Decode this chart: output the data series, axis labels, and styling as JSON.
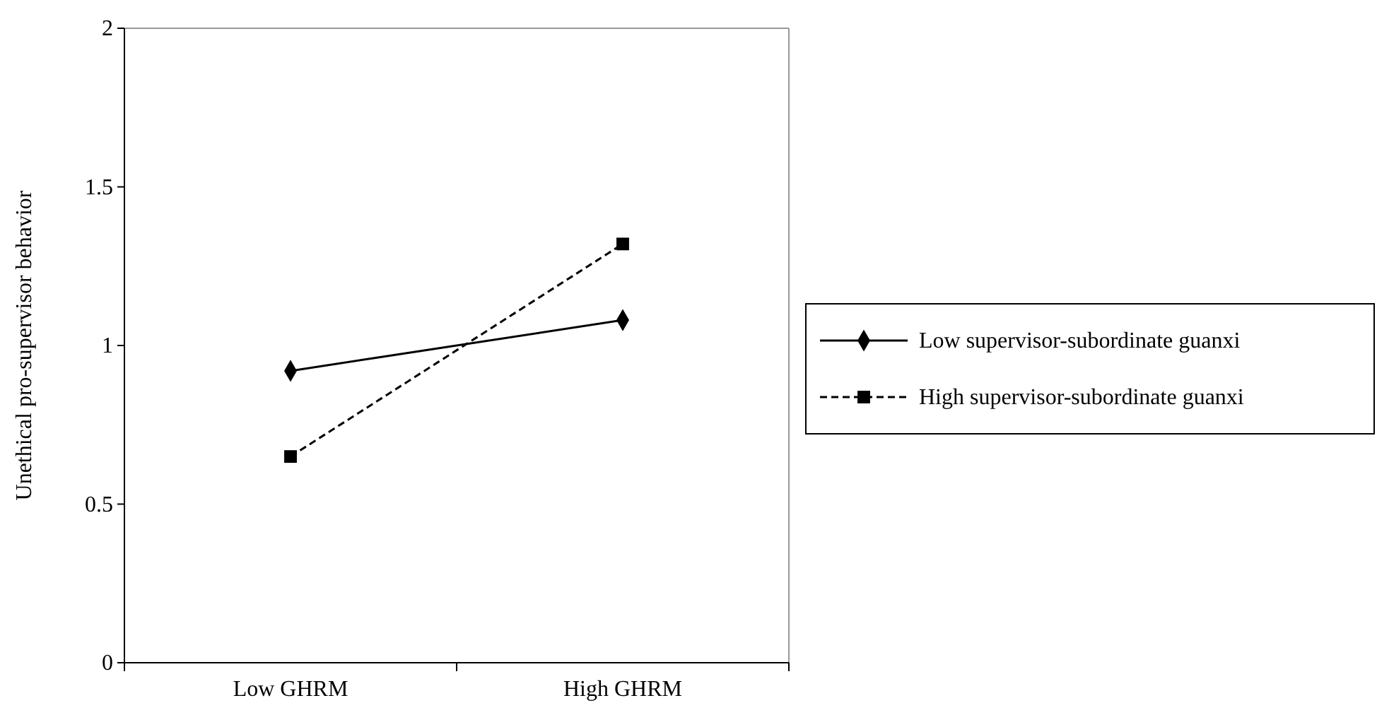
{
  "chart_data": {
    "type": "line",
    "ylabel": "Unethical pro-supervisor behavior",
    "categories": [
      "Low GHRM",
      "High GHRM"
    ],
    "ylim": [
      0,
      2
    ],
    "yticks": [
      0,
      0.5,
      1,
      1.5,
      2
    ],
    "legend": "right",
    "grid": false,
    "series": [
      {
        "name": "Low supervisor-subordinate guanxi",
        "color": "#000000",
        "values": [
          0.92,
          1.08
        ],
        "marker": "diamond",
        "line_style": "solid"
      },
      {
        "name": "High supervisor-subordinate guanxi",
        "color": "#000000",
        "values": [
          0.65,
          1.32
        ],
        "marker": "square",
        "line_style": "dashed"
      }
    ]
  }
}
